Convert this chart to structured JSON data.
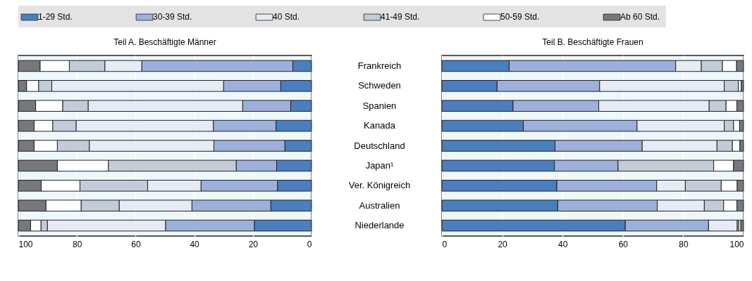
{
  "chart_data": [
    {
      "type": "bar",
      "orientation": "horizontal",
      "stacked": true,
      "title": "Teil A. Beschäftigte Männer",
      "categories": [
        "Frankreich",
        "Schweden",
        "Spanien",
        "Kanada",
        "Deutschland",
        "Japan¹",
        "Ver. Königreich",
        "Australien",
        "Niederlande"
      ],
      "xlim": [
        100,
        0
      ],
      "xticks": [
        100,
        80,
        60,
        40,
        20,
        0
      ],
      "grid": "x",
      "legend": "top",
      "tick_labels": "x",
      "series": [
        {
          "name": "1-29 Std.",
          "color": "#4a7ebf",
          "values": [
            6.4,
            10.5,
            7.1,
            12.1,
            9.1,
            11.9,
            11.6,
            13.9,
            19.5
          ]
        },
        {
          "name": "30-39 Std.",
          "color": "#9bb0da",
          "values": [
            51.5,
            19.5,
            16.4,
            21.4,
            24.2,
            13.8,
            26.1,
            26.9,
            30.3
          ]
        },
        {
          "name": "40 Std.",
          "color": "#e6ebf5",
          "values": [
            12.6,
            58.6,
            52.7,
            46.8,
            42.5,
            null,
            18.2,
            24.8,
            40.3
          ]
        },
        {
          "name": "41-49 Std.",
          "color": "#c3cad8",
          "values": [
            12.1,
            4.5,
            8.7,
            8.0,
            10.9,
            43.6,
            23.1,
            13.0,
            2.2
          ]
        },
        {
          "name": "50-59 Std.",
          "color": "#ffffff",
          "values": [
            10.0,
            4.1,
            9.2,
            6.3,
            7.9,
            17.4,
            13.2,
            12.0,
            3.5
          ]
        },
        {
          "name": "Ab 60 Std.",
          "color": "#76787c",
          "values": [
            7.4,
            2.8,
            5.9,
            5.4,
            5.4,
            13.3,
            7.8,
            9.4,
            4.2
          ]
        }
      ]
    },
    {
      "type": "bar",
      "orientation": "horizontal",
      "stacked": true,
      "title": "Teil B. Beschäftigte Frauen",
      "categories": [
        "Frankreich",
        "Schweden",
        "Spanien",
        "Kanada",
        "Deutschland",
        "Japan¹",
        "Ver. Königreich",
        "Australien",
        "Niederlande"
      ],
      "xlim": [
        0,
        100
      ],
      "xticks": [
        0,
        20,
        40,
        60,
        80,
        100
      ],
      "grid": "x",
      "legend": "top",
      "series": [
        {
          "name": "1-29 Std.",
          "color": "#4a7ebf",
          "values": [
            22.3,
            18.3,
            23.6,
            27.0,
            37.5,
            37.3,
            38.1,
            38.4,
            60.8
          ]
        },
        {
          "name": "30-39 Std.",
          "color": "#9bb0da",
          "values": [
            55.2,
            34.0,
            28.4,
            37.7,
            28.9,
            21.1,
            33.1,
            33.0,
            27.6
          ]
        },
        {
          "name": "40 Std.",
          "color": "#e6ebf5",
          "values": [
            8.5,
            41.3,
            36.6,
            28.9,
            24.8,
            null,
            9.5,
            15.6,
            9.5
          ]
        },
        {
          "name": "41-49 Std.",
          "color": "#c3cad8",
          "values": [
            7.0,
            4.7,
            5.6,
            3.1,
            5.1,
            31.7,
            11.9,
            6.4,
            0.5
          ]
        },
        {
          "name": "50-59 Std.",
          "color": "#ffffff",
          "values": [
            4.7,
            0.9,
            3.6,
            2.0,
            2.5,
            6.6,
            5.3,
            4.4,
            0.7
          ]
        },
        {
          "name": "Ab 60 Std.",
          "color": "#76787c",
          "values": [
            2.3,
            0.8,
            2.2,
            1.3,
            1.2,
            3.3,
            2.1,
            2.2,
            0.9
          ]
        }
      ]
    }
  ]
}
